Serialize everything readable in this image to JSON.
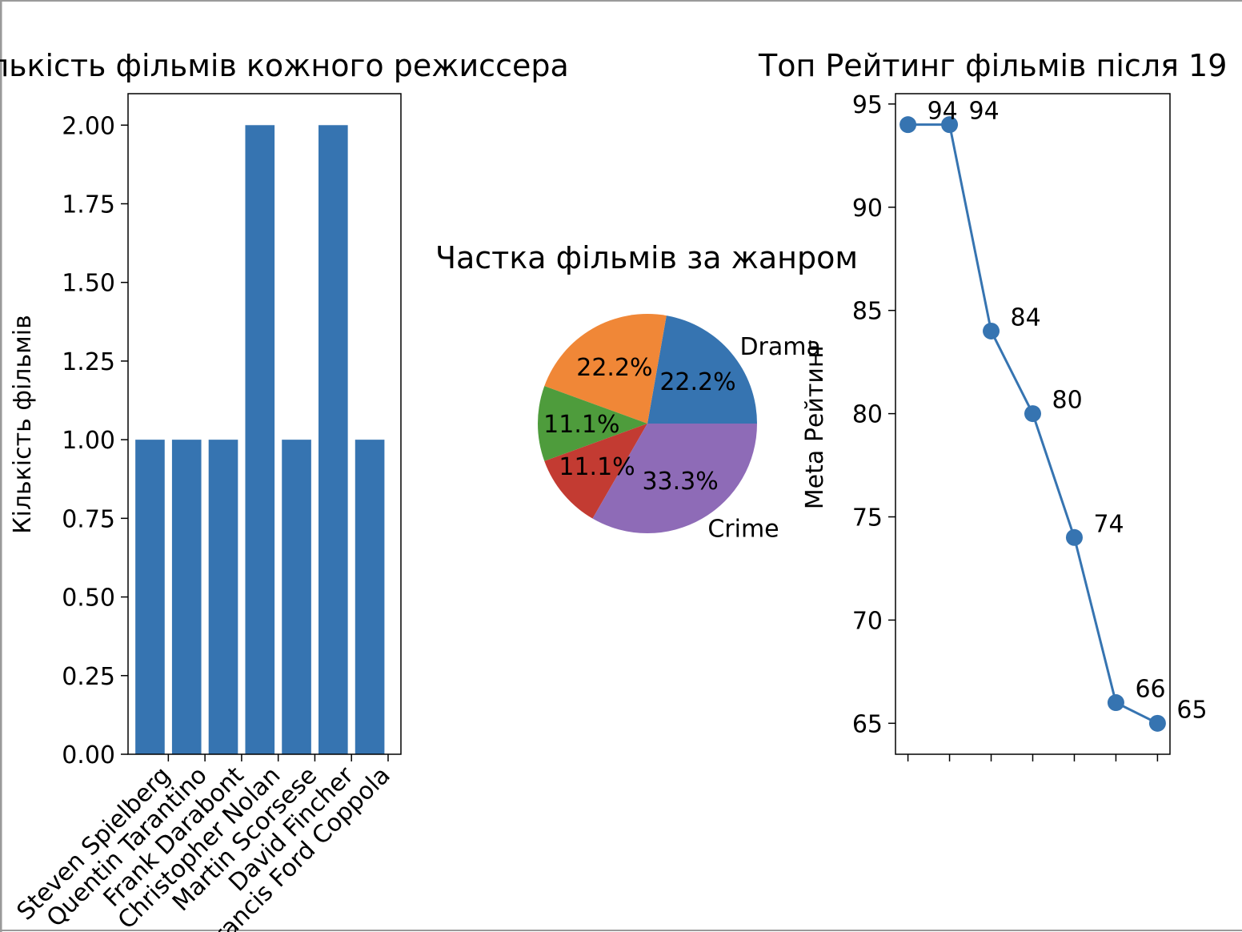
{
  "colors": {
    "bar": "#3674b1",
    "line": "#3674b1",
    "pie": [
      "#3674b1",
      "#f08737",
      "#4e9c3c",
      "#c33b32",
      "#8e6bb7"
    ]
  },
  "chart_data": [
    {
      "type": "bar",
      "title": "Кількість фільмів кожного режиссера",
      "xlabel": "",
      "ylabel": "Кількість фільмів",
      "categories": [
        "Steven Spielberg",
        "Quentin Tarantino",
        "Frank Darabont",
        "Christopher Nolan",
        "Martin Scorsese",
        "David Fincher",
        "Francis Ford Coppola"
      ],
      "values": [
        1,
        1,
        1,
        2,
        1,
        2,
        1
      ],
      "ylim": [
        0,
        2.1
      ],
      "yticks": [
        "0.00",
        "0.25",
        "0.50",
        "0.75",
        "1.00",
        "1.25",
        "1.50",
        "1.75",
        "2.00"
      ],
      "grid": false
    },
    {
      "type": "pie",
      "title": "Частка фільмів за жанром",
      "slices": [
        {
          "label": "Drama",
          "value": 22.2,
          "pct": "22.2%"
        },
        {
          "label": "",
          "value": 22.2,
          "pct": "22.2%"
        },
        {
          "label": "",
          "value": 11.1,
          "pct": "11.1%"
        },
        {
          "label": "",
          "value": 11.1,
          "pct": "11.1%"
        },
        {
          "label": "Crime",
          "value": 33.3,
          "pct": "33.3%"
        }
      ]
    },
    {
      "type": "line",
      "title": "Топ Рейтинг фільмів після 19",
      "xlabel": "",
      "ylabel": "Meta Рейтинг",
      "x": [
        0,
        1,
        2,
        3,
        4,
        5,
        6
      ],
      "y": [
        94,
        94,
        84,
        80,
        74,
        66,
        65
      ],
      "data_labels": [
        "94",
        "94",
        "84",
        "80",
        "74",
        "66",
        "65"
      ],
      "ylim": [
        63.5,
        95.5
      ],
      "yticks": [
        "65",
        "70",
        "75",
        "80",
        "85",
        "90",
        "95"
      ],
      "grid": false
    }
  ]
}
